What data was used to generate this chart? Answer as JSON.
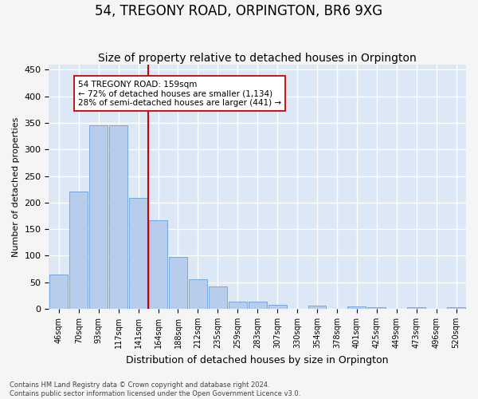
{
  "title": "54, TREGONY ROAD, ORPINGTON, BR6 9XG",
  "subtitle": "Size of property relative to detached houses in Orpington",
  "xlabel": "Distribution of detached houses by size in Orpington",
  "ylabel": "Number of detached properties",
  "bin_labels": [
    "46sqm",
    "70sqm",
    "93sqm",
    "117sqm",
    "141sqm",
    "164sqm",
    "188sqm",
    "212sqm",
    "235sqm",
    "259sqm",
    "283sqm",
    "307sqm",
    "330sqm",
    "354sqm",
    "378sqm",
    "401sqm",
    "425sqm",
    "449sqm",
    "473sqm",
    "496sqm",
    "520sqm"
  ],
  "bar_values": [
    65,
    221,
    345,
    345,
    209,
    167,
    97,
    56,
    42,
    13,
    13,
    7,
    0,
    6,
    0,
    5,
    3,
    0,
    3,
    0,
    3
  ],
  "bar_color": "#b8cceb",
  "bar_edge_color": "#6a9fd8",
  "property_line_color": "#cc0000",
  "annotation_text": "54 TREGONY ROAD: 159sqm\n← 72% of detached houses are smaller (1,134)\n28% of semi-detached houses are larger (441) →",
  "annotation_box_color": "#ffffff",
  "annotation_box_edge": "#cc0000",
  "footer_line1": "Contains HM Land Registry data © Crown copyright and database right 2024.",
  "footer_line2": "Contains public sector information licensed under the Open Government Licence v3.0.",
  "ylim": [
    0,
    460
  ],
  "yticks": [
    0,
    50,
    100,
    150,
    200,
    250,
    300,
    350,
    400,
    450
  ],
  "background_color": "#dce8f5",
  "grid_color": "#ffffff",
  "fig_bg_color": "#f5f5f5"
}
